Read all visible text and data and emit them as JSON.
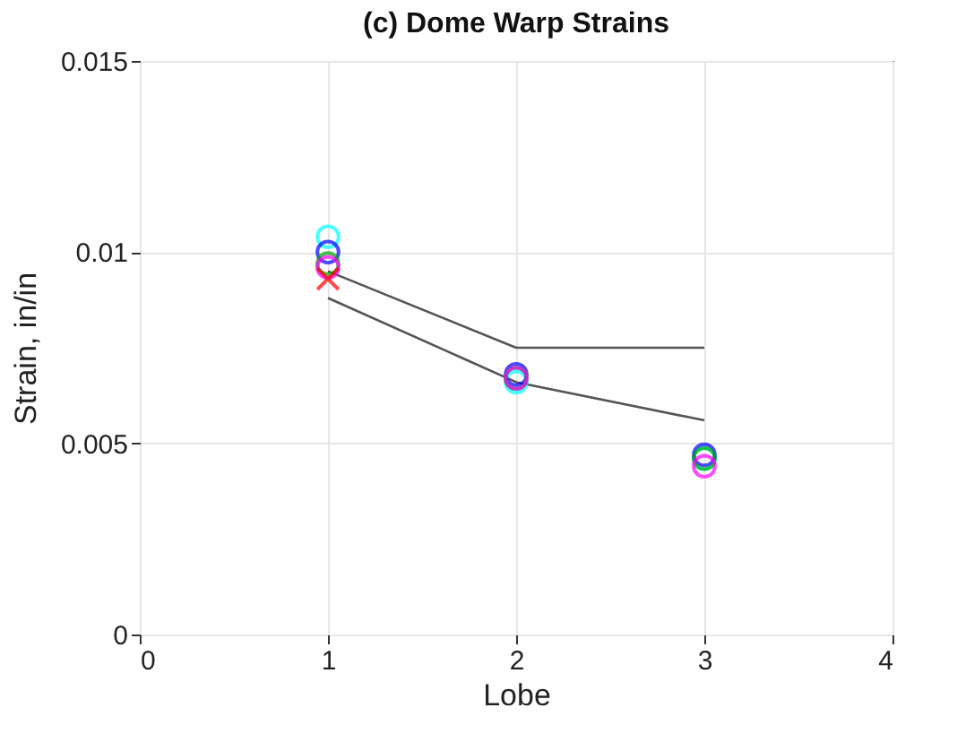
{
  "chart_data": {
    "type": "scatter",
    "title": "(c) Dome Warp Strains",
    "xlabel": "Lobe",
    "ylabel": "Strain, in/in",
    "x": [
      1,
      2,
      3
    ],
    "series": [
      {
        "color": "#555555",
        "type": "line",
        "marker": "none",
        "values": [
          0.0095,
          0.0075,
          0.0075
        ]
      },
      {
        "color": "#555555",
        "type": "line",
        "marker": "none",
        "values": [
          0.0088,
          0.0066,
          0.0056
        ]
      },
      {
        "color": "#00ffff",
        "values": [
          0.0104,
          0.0066,
          0.0046
        ]
      },
      {
        "color": "#0000ff",
        "values": [
          0.01,
          0.0068,
          0.0047
        ]
      },
      {
        "color": "#00aa00",
        "values": [
          0.0097,
          0.0067,
          0.0046
        ]
      },
      {
        "color": "#ff00ff",
        "values": [
          0.0096,
          0.0067,
          0.0044
        ]
      },
      {
        "color": "#ff0000",
        "marker": "cross",
        "values": [
          0.0093,
          null,
          null
        ]
      }
    ],
    "marker": "circle",
    "xlim": [
      0,
      4
    ],
    "xticks": [
      0,
      1,
      2,
      3,
      4
    ],
    "ylim": [
      0,
      0.015
    ],
    "yticks": [
      0,
      0.005,
      0.01,
      0.015
    ],
    "grid": true
  }
}
